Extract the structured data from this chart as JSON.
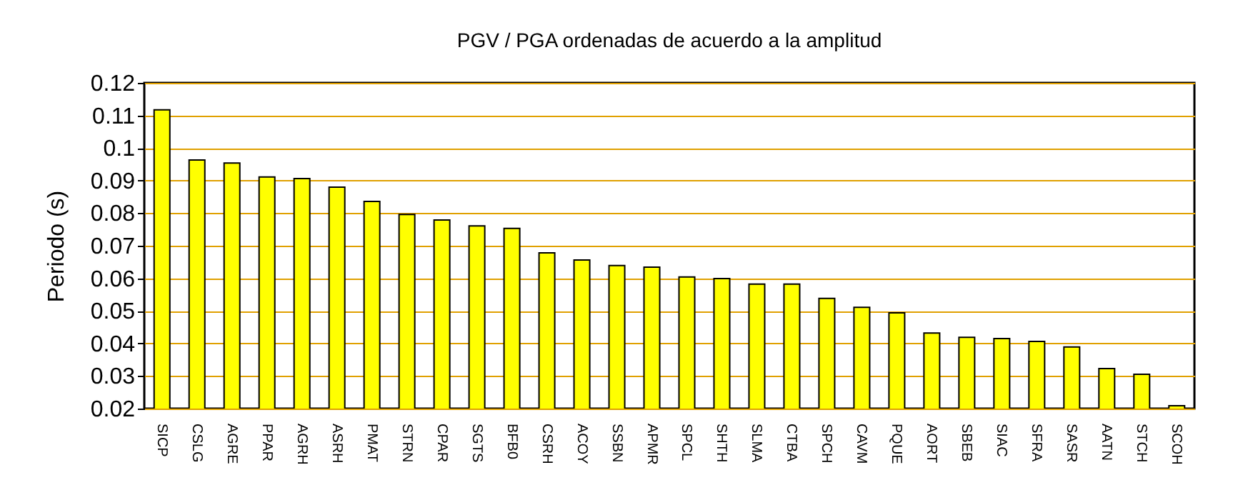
{
  "chart_data": {
    "type": "bar",
    "title": "PGV / PGA ordenadas de acuerdo a la amplitud",
    "ylabel": "Periodo (s)",
    "categories": [
      "SICP",
      "CSLG",
      "AGRE",
      "PPAR",
      "AGRH",
      "ASRH",
      "PMAT",
      "STRN",
      "CPAR",
      "SGTS",
      "BFB0",
      "CSRH",
      "ACOY",
      "SSBN",
      "APMR",
      "SPCL",
      "SHTH",
      "SLMA",
      "CTBA",
      "SPCH",
      "CAVM",
      "PQUE",
      "AORT",
      "SBEB",
      "SIAC",
      "SFRA",
      "SASR",
      "AATN",
      "STCH",
      "SCOH"
    ],
    "values": [
      0.1117,
      0.0963,
      0.0954,
      0.0911,
      0.0906,
      0.088,
      0.0836,
      0.0796,
      0.0779,
      0.0761,
      0.0753,
      0.0678,
      0.0656,
      0.0639,
      0.0634,
      0.0604,
      0.0599,
      0.0582,
      0.0582,
      0.0538,
      0.0511,
      0.0494,
      0.0432,
      0.0419,
      0.0415,
      0.0406,
      0.0389,
      0.0323,
      0.0305,
      0.0209
    ],
    "color": "#ffff00",
    "ylim": [
      0.02,
      0.12
    ],
    "yticks": [
      0.02,
      0.03,
      0.04,
      0.05,
      0.06,
      0.07,
      0.08,
      0.09,
      0.1,
      0.11,
      0.12
    ],
    "grid": "y"
  }
}
